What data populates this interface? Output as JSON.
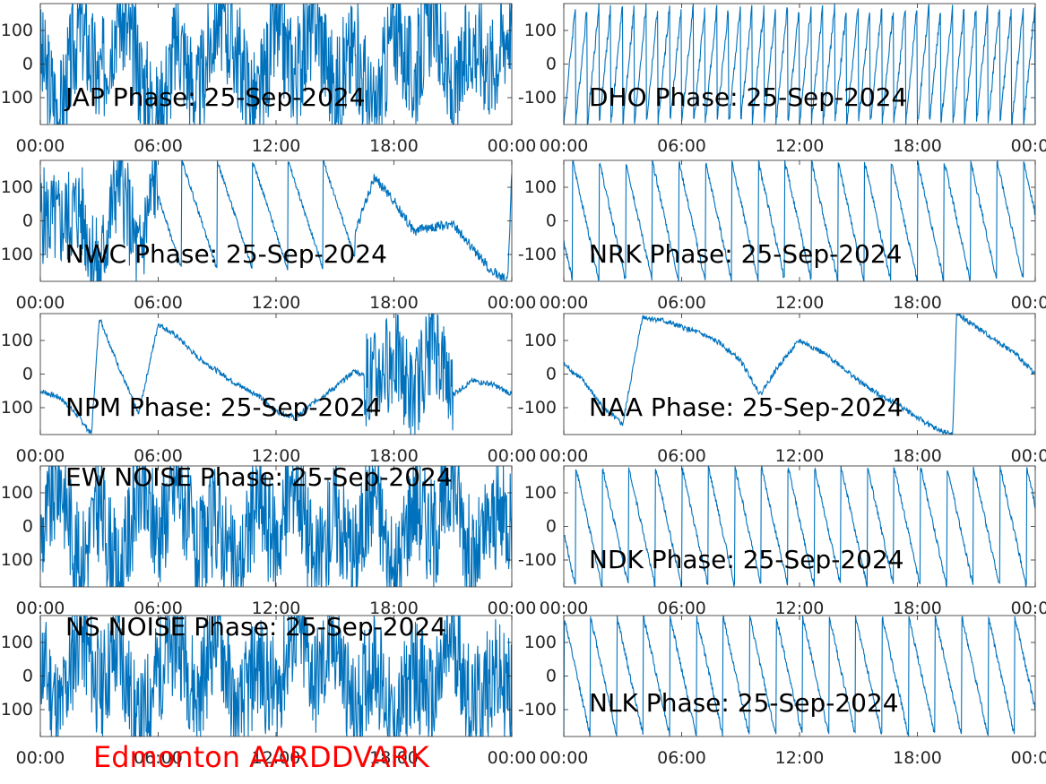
{
  "figure": {
    "footer": "Edmonton AARDDVARK"
  },
  "style": {
    "line_color": "#0072BD",
    "footer_color": "#ff0000",
    "axis_color": "#262626"
  },
  "chart_data": [
    {
      "type": "line",
      "title": "JAP Phase: 25-Sep-2024",
      "x_tick_labels": [
        "00:00",
        "06:00",
        "12:00",
        "18:00",
        "00:00"
      ],
      "y_tick_labels": [
        "100",
        "0",
        "100"
      ],
      "xlim": [
        0,
        24
      ],
      "ylim": [
        -180,
        180
      ],
      "grid": false,
      "pattern": "noise",
      "series": [
        {
          "x": [
            0,
            1,
            2,
            3,
            4,
            5,
            6,
            7,
            8,
            9,
            10,
            11,
            12,
            13,
            14,
            15,
            16,
            17,
            18,
            19,
            20,
            21,
            22,
            23,
            24
          ],
          "values": [
            20,
            -150,
            130,
            -60,
            170,
            -10,
            -170,
            90,
            -110,
            160,
            40,
            -140,
            110,
            -30,
            150,
            -90,
            60,
            -170,
            120,
            -50,
            170,
            -130,
            80,
            -10,
            150
          ]
        }
      ]
    },
    {
      "type": "line",
      "title": "DHO Phase: 25-Sep-2024",
      "x_tick_labels": [
        "00:00",
        "06:00",
        "12:00",
        "18:00",
        "00:00"
      ],
      "y_tick_labels": [
        "100",
        "0",
        "-100"
      ],
      "xlim": [
        0,
        24
      ],
      "ylim": [
        -180,
        180
      ],
      "grid": false,
      "pattern": "fastwrap",
      "series": [
        {
          "x": [
            0,
            1,
            2,
            3,
            4,
            5,
            6,
            7,
            8,
            9,
            10,
            11,
            12,
            13,
            14,
            15,
            16,
            17,
            18,
            19,
            20,
            21,
            22,
            23,
            24
          ],
          "values": [
            170,
            60,
            -50,
            -160,
            110,
            0,
            -110,
            160,
            50,
            -60,
            -170,
            100,
            -10,
            -120,
            150,
            40,
            -70,
            -180,
            90,
            -20,
            -130,
            140,
            30,
            -80,
            170
          ]
        }
      ]
    },
    {
      "type": "line",
      "title": "NWC Phase: 25-Sep-2024",
      "x_tick_labels": [
        "00:00",
        "06:00",
        "12:00",
        "18:00",
        "00:00"
      ],
      "y_tick_labels": [
        "100",
        "0",
        "100"
      ],
      "xlim": [
        0,
        24
      ],
      "ylim": [
        -180,
        180
      ],
      "grid": false,
      "pattern": "mixed",
      "series": [
        {
          "x": [
            0,
            1,
            2,
            3,
            4,
            5,
            6,
            7,
            8,
            9,
            10,
            11,
            12,
            13,
            14,
            15,
            16,
            17,
            18,
            19,
            20,
            21,
            22,
            23,
            23.8,
            24
          ],
          "values": [
            20,
            -10,
            40,
            -160,
            150,
            -120,
            170,
            -30,
            -150,
            90,
            -80,
            170,
            30,
            -90,
            160,
            60,
            -40,
            130,
            60,
            -30,
            -20,
            -10,
            -80,
            -150,
            -175,
            150
          ]
        }
      ]
    },
    {
      "type": "line",
      "title": "NRK Phase: 25-Sep-2024",
      "x_tick_labels": [
        "00:00",
        "06:00",
        "12:00",
        "18:00",
        "00:00"
      ],
      "y_tick_labels": [
        "100",
        "0",
        "-100"
      ],
      "xlim": [
        0,
        24
      ],
      "ylim": [
        -180,
        180
      ],
      "grid": false,
      "pattern": "sawtooth",
      "series": [
        {
          "x": [
            0,
            1,
            2,
            3,
            4,
            5,
            6,
            7,
            8,
            9,
            10,
            11,
            12,
            13,
            14,
            15,
            16,
            17,
            18,
            19,
            20,
            21,
            22,
            23,
            24
          ],
          "values": [
            -20,
            -150,
            120,
            -10,
            -140,
            140,
            40,
            -70,
            170,
            80,
            -30,
            -150,
            130,
            20,
            -90,
            160,
            50,
            -60,
            -170,
            100,
            -10,
            -120,
            150,
            40,
            70
          ]
        }
      ]
    },
    {
      "type": "line",
      "title": "NPM Phase: 25-Sep-2024",
      "x_tick_labels": [
        "00:00",
        "06:00",
        "12:00",
        "18:00",
        "00:00"
      ],
      "y_tick_labels": [
        "100",
        "0",
        "100"
      ],
      "xlim": [
        0,
        24
      ],
      "ylim": [
        -180,
        180
      ],
      "grid": false,
      "pattern": "drift",
      "series": [
        {
          "x": [
            0,
            1,
            2,
            2.6,
            3,
            4,
            5,
            6,
            7,
            8,
            9,
            10,
            11,
            12,
            13,
            14,
            15,
            16,
            17,
            18,
            19,
            20,
            21,
            22,
            23,
            24
          ],
          "values": [
            -50,
            -70,
            -130,
            -180,
            170,
            20,
            -120,
            150,
            110,
            50,
            10,
            -30,
            -60,
            -110,
            -130,
            -80,
            -40,
            10,
            -20,
            60,
            -80,
            120,
            -60,
            -20,
            -30,
            -60
          ]
        }
      ]
    },
    {
      "type": "line",
      "title": "NAA Phase: 25-Sep-2024",
      "x_tick_labels": [
        "00:00",
        "06:00",
        "12:00",
        "18:00",
        "00:00"
      ],
      "y_tick_labels": [
        "100",
        "0",
        "-100"
      ],
      "xlim": [
        0,
        24
      ],
      "ylim": [
        -180,
        180
      ],
      "grid": false,
      "pattern": "drift",
      "series": [
        {
          "x": [
            0,
            1,
            2,
            3,
            4,
            5,
            6,
            7,
            8,
            9,
            10,
            11,
            12,
            13,
            14,
            15,
            16,
            17,
            18,
            19,
            19.8,
            20,
            21,
            22,
            23,
            24
          ],
          "values": [
            30,
            -20,
            -100,
            -150,
            170,
            160,
            140,
            120,
            90,
            40,
            -60,
            30,
            100,
            70,
            30,
            -20,
            -60,
            -90,
            -130,
            -165,
            -180,
            180,
            140,
            100,
            60,
            0
          ]
        }
      ]
    },
    {
      "type": "line",
      "title": "EW NOISE Phase: 25-Sep-2024",
      "x_tick_labels": [
        "00:00",
        "06:00",
        "12:00",
        "18:00",
        "00:00"
      ],
      "y_tick_labels": [
        "100",
        "0",
        "100"
      ],
      "xlim": [
        0,
        24
      ],
      "ylim": [
        -180,
        180
      ],
      "grid": false,
      "pattern": "noise",
      "series": [
        {
          "x": [
            0,
            1,
            2,
            3,
            4,
            5,
            6,
            7,
            8,
            9,
            10,
            11,
            12,
            13,
            14,
            15,
            16,
            17,
            18,
            19,
            20,
            21,
            22,
            23,
            24
          ],
          "values": [
            -40,
            160,
            -130,
            70,
            -170,
            120,
            -20,
            150,
            -100,
            30,
            -160,
            90,
            -60,
            170,
            -140,
            50,
            -90,
            130,
            -180,
            100,
            -30,
            160,
            -120,
            20,
            40
          ]
        }
      ]
    },
    {
      "type": "line",
      "title": "NDK Phase: 25-Sep-2024",
      "x_tick_labels": [
        "00:00",
        "06:00",
        "12:00",
        "18:00",
        "00:00"
      ],
      "y_tick_labels": [
        "100",
        "0",
        "-100"
      ],
      "xlim": [
        0,
        24
      ],
      "ylim": [
        -180,
        180
      ],
      "grid": false,
      "pattern": "sawtooth",
      "series": [
        {
          "x": [
            0,
            1,
            2,
            3,
            4,
            5,
            6,
            7,
            8,
            9,
            10,
            11,
            12,
            13,
            14,
            15,
            16,
            17,
            18,
            19,
            20,
            21,
            22,
            23,
            24
          ],
          "values": [
            70,
            -30,
            -140,
            140,
            30,
            -80,
            170,
            60,
            -50,
            -160,
            110,
            0,
            -110,
            160,
            50,
            -60,
            -170,
            100,
            -10,
            -120,
            150,
            40,
            -70,
            -180,
            90
          ]
        }
      ]
    },
    {
      "type": "line",
      "title": "NS NOISE Phase: 25-Sep-2024",
      "x_tick_labels": [
        "00:00",
        "06:00",
        "12:00",
        "18:00",
        "00:00"
      ],
      "y_tick_labels": [
        "100",
        "0",
        "100"
      ],
      "xlim": [
        0,
        24
      ],
      "ylim": [
        -180,
        180
      ],
      "grid": false,
      "pattern": "noise",
      "series": [
        {
          "x": [
            0,
            1,
            2,
            3,
            4,
            5,
            6,
            7,
            8,
            9,
            10,
            11,
            12,
            13,
            14,
            15,
            16,
            17,
            18,
            19,
            20,
            21,
            22,
            23,
            24
          ],
          "values": [
            60,
            -120,
            150,
            -40,
            90,
            -170,
            20,
            130,
            -80,
            170,
            -150,
            40,
            -60,
            160,
            -20,
            110,
            -130,
            70,
            -170,
            30,
            -90,
            140,
            -110,
            10,
            -50
          ]
        }
      ]
    },
    {
      "type": "line",
      "title": "NLK Phase: 25-Sep-2024",
      "x_tick_labels": [
        "00:00",
        "06:00",
        "12:00",
        "18:00",
        "00:00"
      ],
      "y_tick_labels": [
        "100",
        "0",
        "-100"
      ],
      "xlim": [
        0,
        24
      ],
      "ylim": [
        -180,
        180
      ],
      "grid": false,
      "pattern": "sawtooth",
      "series": [
        {
          "x": [
            0,
            1,
            2,
            3,
            4,
            5,
            6,
            7,
            8,
            9,
            10,
            11,
            12,
            13,
            14,
            15,
            16,
            17,
            18,
            19,
            20,
            21,
            22,
            23,
            24
          ],
          "values": [
            -10,
            -120,
            150,
            40,
            -70,
            170,
            60,
            -50,
            -160,
            110,
            0,
            -110,
            160,
            30,
            -60,
            -170,
            100,
            -10,
            -120,
            150,
            40,
            -70,
            -180,
            90,
            -20
          ]
        }
      ]
    }
  ]
}
